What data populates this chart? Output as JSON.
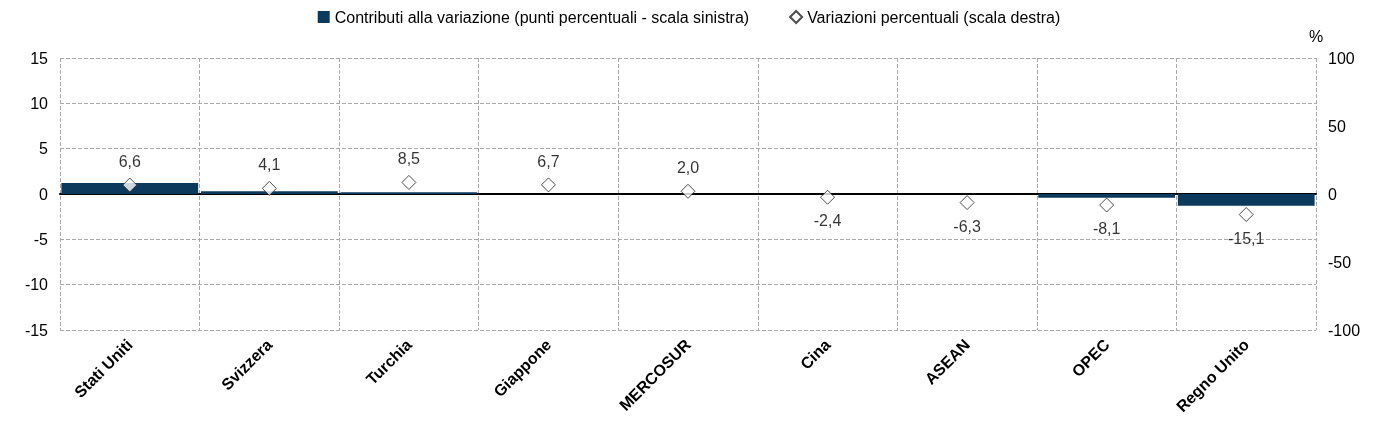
{
  "chart_data": {
    "type": "bar",
    "y2label": "%",
    "categories": [
      "Stati Uniti",
      "Svizzera",
      "Turchia",
      "Giappone",
      "MERCOSUR",
      "Cina",
      "ASEAN",
      "OPEC",
      "Regno Unito"
    ],
    "series": [
      {
        "name": "Contributi alla variazione (punti percentuali - scala sinistra)",
        "color": "#0b3a5c",
        "values": [
          1.2,
          0.3,
          0.2,
          0.0,
          0.0,
          0.0,
          0.0,
          -0.4,
          -1.3
        ]
      },
      {
        "name": "Variazioni percentuali (scala destra)",
        "type": "scatter",
        "axis": "y2",
        "color": "#ffffff",
        "marker": "diamond",
        "values": [
          6.6,
          4.1,
          8.5,
          6.7,
          2.0,
          -2.4,
          -6.3,
          -8.1,
          -15.1
        ],
        "value_labels": [
          "6,6",
          "4,1",
          "8,5",
          "6,7",
          "2,0",
          "-2,4",
          "-6,3",
          "-8,1",
          "-15,1"
        ]
      }
    ],
    "ylim": [
      -15,
      15
    ],
    "yticks": [
      -15,
      -10,
      -5,
      0,
      5,
      10,
      15
    ],
    "y2lim": [
      -100,
      100
    ],
    "y2ticks": [
      -100,
      -50,
      0,
      50,
      100
    ],
    "grid": true,
    "legend": "top"
  }
}
